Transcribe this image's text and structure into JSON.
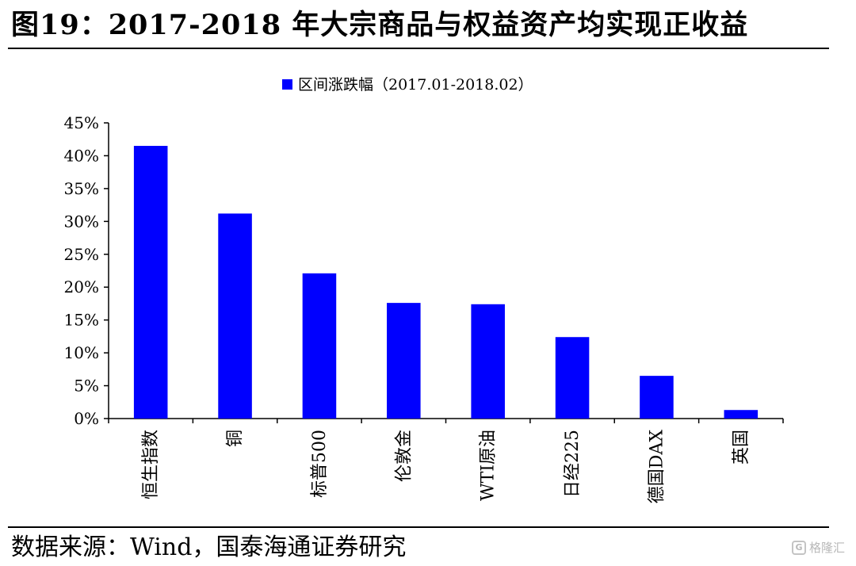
{
  "figure": {
    "title": "图19：2017-2018 年大宗商品与权益资产均实现正收益",
    "source": "数据来源：Wind，国泰海通证券研究",
    "watermark": "格隆汇",
    "watermark_icon": "G"
  },
  "colors": {
    "bar": "#0000ff",
    "axis": "#000000"
  },
  "chart_data": {
    "type": "bar",
    "title": "",
    "xlabel": "",
    "ylabel": "",
    "categories": [
      "恒生指数",
      "铜",
      "标普500",
      "伦敦金",
      "WTI原油",
      "日经225",
      "德国DAX",
      "英国"
    ],
    "series": [
      {
        "name": "区间涨跌幅（2017.01-2018.02）",
        "values": [
          41.5,
          31.2,
          22.1,
          17.6,
          17.4,
          12.4,
          6.5,
          1.3
        ]
      }
    ],
    "ylim": [
      0,
      45
    ],
    "yticks": [
      "0%",
      "5%",
      "10%",
      "15%",
      "20%",
      "25%",
      "30%",
      "35%",
      "40%",
      "45%"
    ],
    "legend_position": "top-center",
    "grid": false,
    "x_label_orientation": "vertical"
  }
}
